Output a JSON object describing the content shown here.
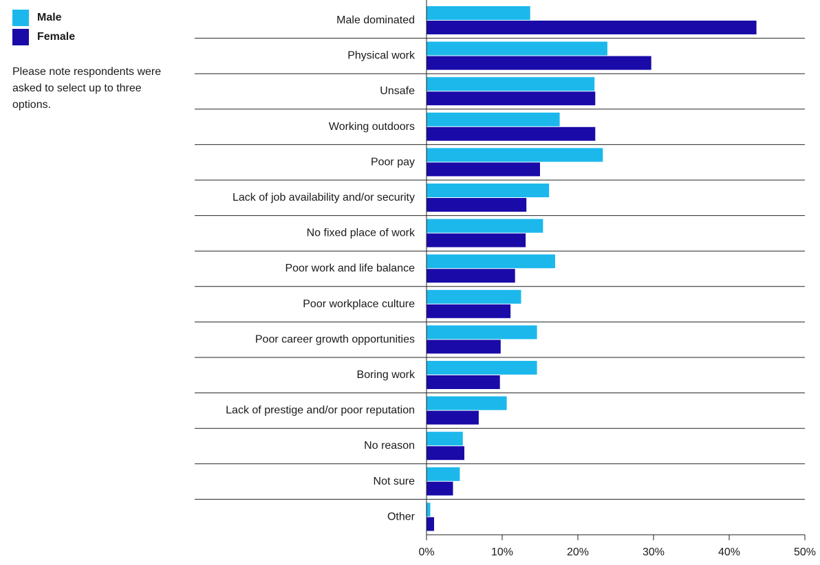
{
  "legend": {
    "items": [
      {
        "label": "Male",
        "color": "#1cb8ec"
      },
      {
        "label": "Female",
        "color": "#1a0aa8"
      }
    ]
  },
  "note": "Please note respondents were asked to select up to three options.",
  "chart_data": {
    "type": "bar",
    "orientation": "horizontal",
    "categories": [
      "Male dominated",
      "Physical work",
      "Unsafe",
      "Working outdoors",
      "Poor pay",
      "Lack of job availability and/or security",
      "No fixed place of work",
      "Poor work and life balance",
      "Poor workplace culture",
      "Poor career growth opportunities",
      "Boring work",
      "Lack of prestige and/or poor reputation",
      "No reason",
      "Not sure",
      "Other"
    ],
    "series": [
      {
        "name": "Male",
        "color": "#1cb8ec",
        "values": [
          13.7,
          23.9,
          22.2,
          17.6,
          23.3,
          16.2,
          15.4,
          17.0,
          12.5,
          14.6,
          14.6,
          10.6,
          4.8,
          4.4,
          0.5
        ]
      },
      {
        "name": "Female",
        "color": "#1a0aa8",
        "values": [
          43.6,
          29.7,
          22.3,
          22.3,
          15.0,
          13.2,
          13.1,
          11.7,
          11.1,
          9.8,
          9.7,
          6.9,
          5.0,
          3.5,
          1.0
        ]
      }
    ],
    "xlim": [
      0,
      50
    ],
    "xticks": [
      "0%",
      "10%",
      "20%",
      "30%",
      "40%",
      "50%"
    ],
    "grid": false,
    "legend_position": "top-left"
  }
}
